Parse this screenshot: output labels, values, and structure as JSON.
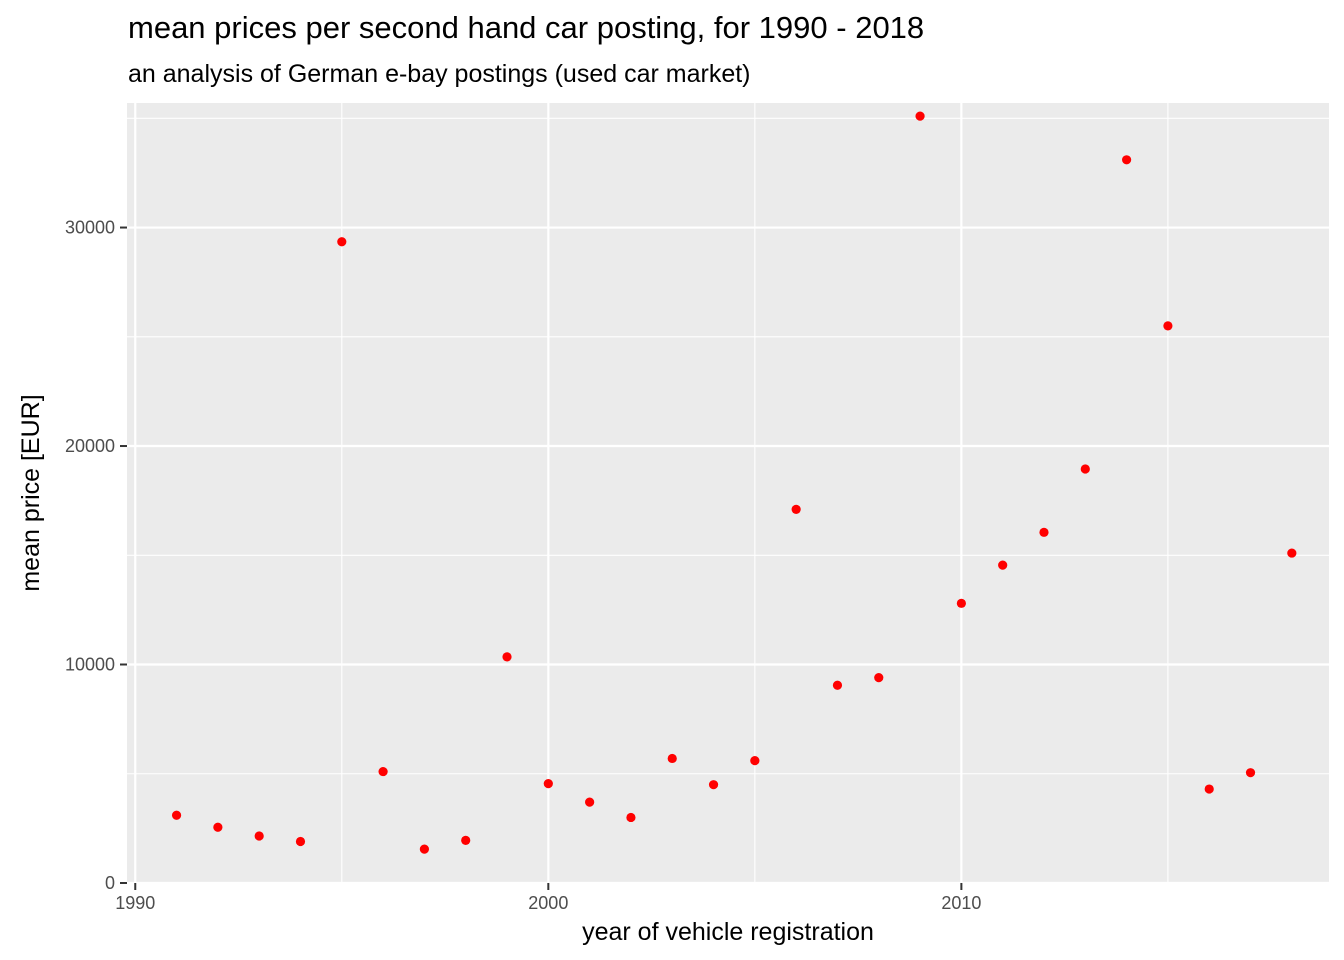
{
  "chart_data": {
    "type": "scatter",
    "title": "mean prices per second hand car posting, for 1990 - 2018",
    "subtitle": "an analysis of German e-bay postings (used car market)",
    "xlabel": "year of vehicle registration",
    "ylabel": "mean price [EUR]",
    "xlim": [
      1989.8,
      2018.9
    ],
    "ylim": [
      0,
      35700
    ],
    "x_ticks": [
      1990,
      2000,
      2010
    ],
    "y_ticks": [
      0,
      10000,
      20000,
      30000
    ],
    "x_tick_labels": [
      "1990",
      "2000",
      "2010"
    ],
    "y_tick_labels": [
      "0",
      "10000",
      "20000",
      "30000"
    ],
    "grid": true,
    "panel_color": "#ebebeb",
    "point_color": "#ff0000",
    "x": [
      1991,
      1992,
      1993,
      1994,
      1995,
      1996,
      1997,
      1998,
      1999,
      2000,
      2001,
      2002,
      2003,
      2004,
      2005,
      2006,
      2007,
      2008,
      2009,
      2010,
      2011,
      2012,
      2013,
      2014,
      2015,
      2016,
      2017,
      2018
    ],
    "y": [
      3100,
      2550,
      2150,
      1900,
      29350,
      5100,
      1550,
      1950,
      10350,
      4550,
      3700,
      3000,
      5700,
      4500,
      5600,
      17100,
      9050,
      9400,
      35100,
      12800,
      14550,
      16050,
      18950,
      33100,
      25500,
      4300,
      5050,
      15100
    ]
  }
}
